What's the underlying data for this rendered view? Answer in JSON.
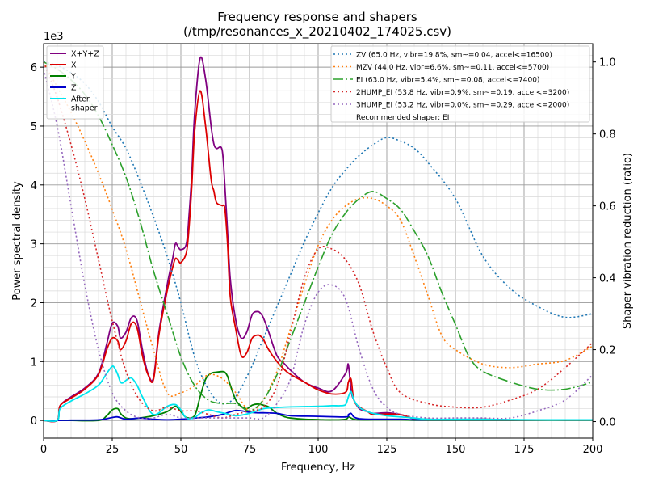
{
  "chart_data": {
    "type": "line",
    "title": "Frequency response and shapers",
    "subtitle": "(/tmp/resonances_x_20210402_174025.csv)",
    "xlabel": "Frequency, Hz",
    "ylabel": "Power spectral density",
    "y2label": "Shaper vibration reduction (ratio)",
    "y_multiplier_label": "1e3",
    "xlim": [
      0,
      200
    ],
    "ylim": [
      -300,
      6400
    ],
    "y2lim": [
      -0.046,
      1.051
    ],
    "xticks": [
      "0",
      "25",
      "50",
      "75",
      "100",
      "125",
      "150",
      "175",
      "200"
    ],
    "yticks": [
      "0",
      "1",
      "2",
      "3",
      "4",
      "5",
      "6"
    ],
    "y2ticks": [
      "0.0",
      "0.2",
      "0.4",
      "0.6",
      "0.8",
      "1.0"
    ],
    "grid": true,
    "legend_left_placement": "top-left",
    "legend_right_placement": "top-right",
    "recommendation_text": "Recommended shaper: EI",
    "psd_series": [
      {
        "name": "X+Y+Z",
        "color": "#800080",
        "x": [
          0,
          5,
          6,
          10,
          15,
          20,
          23,
          25,
          27,
          28,
          30,
          32,
          34,
          36,
          38,
          40,
          42,
          45,
          47,
          48,
          49,
          50,
          52,
          53,
          54,
          55,
          57,
          59,
          61,
          62,
          63,
          65,
          66,
          67,
          68,
          70,
          72,
          74,
          76,
          78,
          79,
          80,
          82,
          85,
          88,
          90,
          95,
          100,
          105,
          110,
          111,
          112,
          113,
          115,
          118,
          120,
          125,
          130,
          135,
          140,
          150,
          160,
          170,
          180,
          190,
          200
        ],
        "y": [
          0,
          0,
          250,
          400,
          550,
          800,
          1300,
          1650,
          1600,
          1400,
          1500,
          1750,
          1700,
          1200,
          800,
          720,
          1500,
          2300,
          2750,
          3000,
          2950,
          2900,
          3000,
          3500,
          4200,
          5200,
          6150,
          5800,
          5000,
          4700,
          4620,
          4600,
          4000,
          3200,
          2400,
          1700,
          1400,
          1500,
          1800,
          1850,
          1820,
          1750,
          1500,
          1100,
          950,
          850,
          650,
          550,
          500,
          800,
          950,
          500,
          350,
          200,
          150,
          120,
          130,
          100,
          30,
          20,
          10,
          20,
          10,
          10,
          10,
          10
        ]
      },
      {
        "name": "X",
        "color": "#dd0000",
        "x": [
          0,
          5,
          6,
          10,
          15,
          20,
          23,
          25,
          27,
          28,
          30,
          32,
          34,
          36,
          38,
          40,
          42,
          45,
          47,
          48,
          49,
          50,
          52,
          53,
          54,
          55,
          57,
          59,
          61,
          62,
          63,
          65,
          66,
          67,
          68,
          70,
          72,
          74,
          76,
          78,
          79,
          80,
          82,
          85,
          88,
          90,
          95,
          100,
          105,
          110,
          111,
          112,
          113,
          115,
          118,
          120,
          125,
          130,
          135,
          140,
          150,
          160,
          170,
          180,
          190,
          200
        ],
        "y": [
          0,
          0,
          250,
          380,
          530,
          780,
          1200,
          1400,
          1350,
          1200,
          1350,
          1650,
          1580,
          1100,
          780,
          690,
          1450,
          2200,
          2600,
          2750,
          2720,
          2680,
          2850,
          3300,
          4000,
          4900,
          5600,
          5000,
          4100,
          3900,
          3700,
          3650,
          3600,
          3000,
          2100,
          1550,
          1100,
          1150,
          1400,
          1450,
          1430,
          1380,
          1200,
          1000,
          850,
          780,
          650,
          520,
          450,
          480,
          650,
          700,
          350,
          230,
          150,
          100,
          110,
          100,
          30,
          20,
          10,
          20,
          10,
          10,
          10,
          10
        ]
      },
      {
        "name": "Y",
        "color": "#008000",
        "x": [
          0,
          5,
          10,
          20,
          23,
          25,
          27,
          28,
          30,
          32,
          35,
          40,
          45,
          48,
          50,
          52,
          55,
          57,
          59,
          61,
          63,
          65,
          66,
          67,
          68,
          70,
          72,
          74,
          76,
          78,
          80,
          82,
          85,
          88,
          90,
          95,
          100,
          105,
          110,
          111,
          112,
          113,
          115,
          120,
          125,
          130,
          135,
          140,
          150,
          160,
          170,
          180,
          190,
          200
        ],
        "y": [
          0,
          0,
          0,
          0,
          80,
          180,
          200,
          120,
          40,
          30,
          40,
          80,
          150,
          240,
          150,
          50,
          80,
          400,
          700,
          800,
          820,
          830,
          820,
          750,
          600,
          350,
          240,
          200,
          260,
          280,
          260,
          230,
          120,
          60,
          40,
          20,
          15,
          10,
          20,
          60,
          40,
          20,
          10,
          10,
          10,
          10,
          5,
          5,
          5,
          5,
          5,
          5,
          5,
          5
        ]
      },
      {
        "name": "Z",
        "color": "#0000cc",
        "x": [
          0,
          5,
          10,
          20,
          25,
          27,
          30,
          35,
          40,
          45,
          50,
          55,
          60,
          65,
          70,
          75,
          78,
          80,
          85,
          90,
          100,
          110,
          111,
          112,
          113,
          115,
          120,
          130,
          135,
          140,
          150,
          160,
          170,
          180,
          190,
          200
        ],
        "y": [
          0,
          0,
          5,
          10,
          50,
          60,
          20,
          40,
          20,
          10,
          20,
          40,
          60,
          100,
          170,
          140,
          130,
          130,
          120,
          80,
          70,
          60,
          100,
          120,
          60,
          30,
          20,
          20,
          10,
          10,
          10,
          10,
          10,
          10,
          10,
          10
        ]
      },
      {
        "name": "After\nshaper",
        "color": "#00e5ee",
        "x": [
          0,
          5,
          6,
          10,
          15,
          20,
          23,
          25,
          26,
          27,
          28,
          29,
          30,
          32,
          34,
          36,
          40,
          45,
          48,
          50,
          52,
          55,
          57,
          60,
          63,
          66,
          70,
          75,
          80,
          85,
          90,
          100,
          105,
          108,
          110,
          111,
          112,
          113,
          115,
          118,
          120,
          125,
          130,
          135,
          140,
          150,
          160,
          170,
          180,
          190,
          200
        ],
        "y": [
          0,
          0,
          200,
          330,
          450,
          600,
          800,
          920,
          880,
          780,
          650,
          640,
          680,
          720,
          600,
          400,
          100,
          240,
          270,
          180,
          40,
          50,
          120,
          180,
          150,
          120,
          80,
          120,
          200,
          220,
          230,
          240,
          250,
          250,
          270,
          400,
          490,
          350,
          220,
          150,
          120,
          80,
          60,
          40,
          20,
          20,
          20,
          15,
          10,
          10,
          10
        ]
      }
    ],
    "shaper_series": [
      {
        "name": "ZV (65.0 Hz, vibr=19.8%, sm~=0.04, accel<=16500)",
        "color": "#1f77b4",
        "dash": "2,3",
        "x": [
          0,
          5,
          10,
          15,
          20,
          25,
          30,
          35,
          40,
          45,
          50,
          55,
          60,
          65,
          70,
          75,
          80,
          85,
          90,
          95,
          100,
          105,
          110,
          115,
          120,
          125,
          130,
          135,
          140,
          150,
          160,
          170,
          180,
          190,
          200
        ],
        "y": [
          1.0,
          0.99,
          0.97,
          0.94,
          0.89,
          0.82,
          0.76,
          0.67,
          0.57,
          0.46,
          0.33,
          0.18,
          0.09,
          0.05,
          0.07,
          0.14,
          0.23,
          0.32,
          0.41,
          0.5,
          0.58,
          0.65,
          0.7,
          0.74,
          0.77,
          0.79,
          0.78,
          0.76,
          0.72,
          0.62,
          0.46,
          0.37,
          0.32,
          0.29,
          0.3
        ]
      },
      {
        "name": "MZV (44.0 Hz, vibr=6.6%, sm~=0.11, accel<=5700)",
        "color": "#ff7f0e",
        "dash": "2,3",
        "x": [
          0,
          5,
          10,
          15,
          20,
          25,
          30,
          35,
          40,
          45,
          50,
          55,
          60,
          65,
          70,
          75,
          80,
          85,
          90,
          95,
          100,
          105,
          110,
          115,
          120,
          125,
          130,
          135,
          140,
          145,
          150,
          160,
          170,
          180,
          190,
          200
        ],
        "y": [
          1.0,
          0.93,
          0.86,
          0.78,
          0.69,
          0.59,
          0.48,
          0.34,
          0.2,
          0.08,
          0.08,
          0.1,
          0.13,
          0.12,
          0.08,
          0.03,
          0.06,
          0.14,
          0.26,
          0.38,
          0.49,
          0.56,
          0.6,
          0.62,
          0.62,
          0.6,
          0.56,
          0.46,
          0.35,
          0.24,
          0.2,
          0.16,
          0.15,
          0.16,
          0.17,
          0.21
        ]
      },
      {
        "name": "EI (63.0 Hz, vibr=5.4%, sm~=0.08, accel<=7400)",
        "color": "#2ca02c",
        "dash": "12,3,2,3",
        "x": [
          0,
          5,
          10,
          15,
          20,
          25,
          30,
          35,
          40,
          45,
          50,
          55,
          60,
          65,
          70,
          75,
          80,
          85,
          90,
          95,
          100,
          105,
          110,
          115,
          120,
          125,
          130,
          135,
          140,
          145,
          150,
          155,
          160,
          170,
          180,
          190,
          200
        ],
        "y": [
          1.0,
          0.98,
          0.95,
          0.91,
          0.85,
          0.77,
          0.68,
          0.56,
          0.42,
          0.3,
          0.18,
          0.1,
          0.06,
          0.05,
          0.05,
          0.03,
          0.06,
          0.13,
          0.23,
          0.33,
          0.43,
          0.52,
          0.58,
          0.62,
          0.64,
          0.62,
          0.59,
          0.53,
          0.46,
          0.36,
          0.27,
          0.18,
          0.14,
          0.11,
          0.09,
          0.09,
          0.11
        ]
      },
      {
        "name": "2HUMP_EI (53.8 Hz, vibr=0.9%, sm~=0.19, accel<=3200)",
        "color": "#d62728",
        "dash": "2,3",
        "x": [
          0,
          5,
          10,
          15,
          20,
          25,
          30,
          35,
          40,
          45,
          50,
          55,
          60,
          65,
          70,
          75,
          80,
          85,
          90,
          95,
          100,
          105,
          110,
          115,
          120,
          125,
          130,
          140,
          150,
          160,
          170,
          180,
          190,
          200
        ],
        "y": [
          1.0,
          0.9,
          0.77,
          0.62,
          0.45,
          0.28,
          0.14,
          0.06,
          0.03,
          0.04,
          0.03,
          0.03,
          0.02,
          0.01,
          0.02,
          0.03,
          0.04,
          0.1,
          0.25,
          0.4,
          0.48,
          0.48,
          0.45,
          0.38,
          0.25,
          0.15,
          0.08,
          0.05,
          0.04,
          0.04,
          0.06,
          0.09,
          0.15,
          0.22
        ]
      },
      {
        "name": "3HUMP_EI (53.2 Hz, vibr=0.0%, sm~=0.29, accel<=2000)",
        "color": "#9467bd",
        "dash": "2,3",
        "x": [
          0,
          5,
          10,
          15,
          20,
          25,
          30,
          35,
          40,
          45,
          50,
          55,
          60,
          65,
          70,
          75,
          80,
          85,
          90,
          95,
          100,
          105,
          110,
          115,
          120,
          125,
          130,
          140,
          150,
          160,
          170,
          180,
          190,
          200
        ],
        "y": [
          0.98,
          0.82,
          0.6,
          0.38,
          0.2,
          0.08,
          0.03,
          0.01,
          0.01,
          0.02,
          0.01,
          0.01,
          0.01,
          0.01,
          0.01,
          0.01,
          0.01,
          0.05,
          0.12,
          0.27,
          0.36,
          0.38,
          0.34,
          0.2,
          0.09,
          0.04,
          0.02,
          0.01,
          0.01,
          0.01,
          0.01,
          0.03,
          0.06,
          0.13
        ]
      }
    ]
  }
}
